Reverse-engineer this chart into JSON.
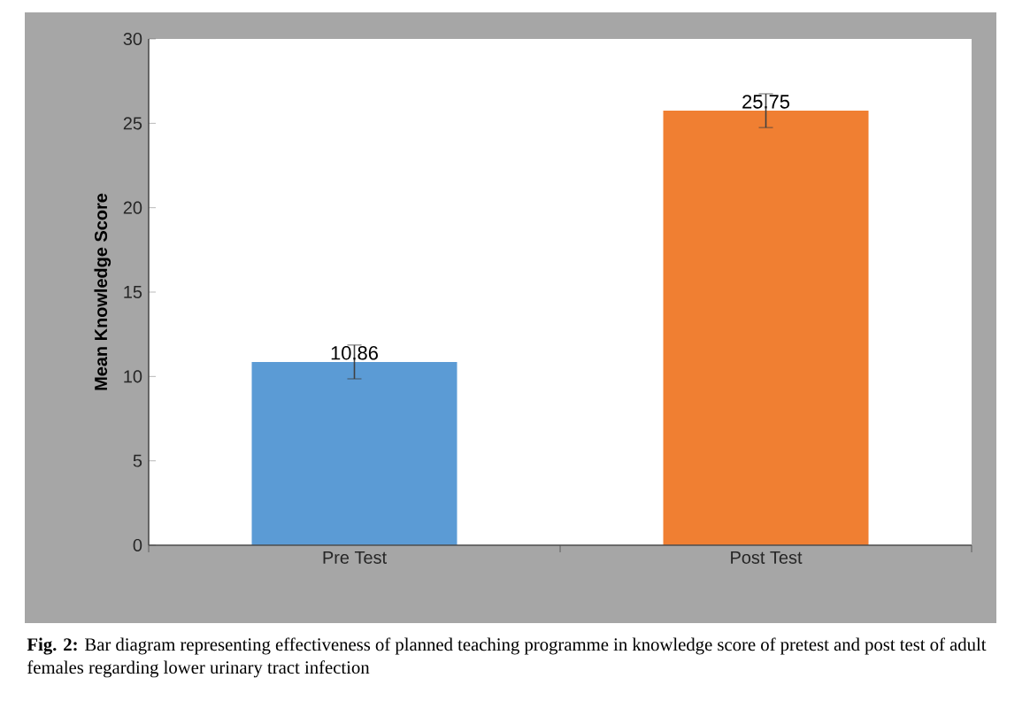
{
  "chart_data": {
    "type": "bar",
    "ylabel": "Mean Knowledge Score",
    "categories": [
      "Pre Test",
      "Post Test"
    ],
    "values": [
      10.86,
      25.75
    ],
    "colors": [
      "#5b9bd5",
      "#f07f32"
    ],
    "errors": [
      1,
      1
    ],
    "data_labels": true,
    "ylim": [
      0,
      30
    ],
    "yticks": [
      0,
      5,
      10,
      15,
      20,
      25,
      30
    ],
    "annotations": [
      "**Fig. 2:** Bar diagram representing effectiveness of planned teaching programme in knowledge score of pretest and post test of adult females regarding lower urinary tract infection"
    ]
  }
}
